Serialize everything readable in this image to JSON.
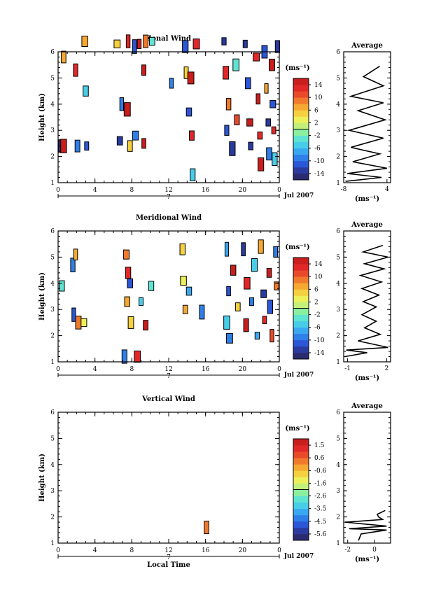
{
  "chart_data": [
    {
      "type": "heatmap",
      "title": "Zonal Wind",
      "xlabel": "",
      "ylabel": "Height (km)",
      "x_ticks": [
        "0",
        "4",
        "8",
        "12",
        "16",
        "20",
        "0"
      ],
      "y_ticks": [
        "1",
        "2",
        "3",
        "4",
        "5",
        "6"
      ],
      "xlim": [
        0,
        24
      ],
      "ylim": [
        1,
        6
      ],
      "day_label": "7",
      "date_label": "Jul 2007",
      "colorbar": {
        "unit": "(ms⁻¹)",
        "ticks": [
          "14",
          "10",
          "6",
          "2",
          "-2",
          "-6",
          "-10",
          "-14"
        ],
        "range": [
          -16,
          16
        ],
        "colors": [
          "#2a2a6e",
          "#2b3a9e",
          "#2b56d6",
          "#2f7fe8",
          "#3aa8f0",
          "#48cde8",
          "#5fe3d2",
          "#8af0a0",
          "#c2f07a",
          "#ecf05a",
          "#f5d040",
          "#f5a832",
          "#f07a2c",
          "#e84a2a",
          "#e02828",
          "#c81e1e"
        ]
      },
      "patches": [
        {
          "t": 0.3,
          "h": 2.4,
          "v": -14
        },
        {
          "t": 0.6,
          "h": 2.4,
          "v": 14
        },
        {
          "t": 0.6,
          "h": 5.8,
          "v": 6
        },
        {
          "t": 1.9,
          "h": 5.3,
          "v": 12
        },
        {
          "t": 2.1,
          "h": 2.4,
          "v": -10
        },
        {
          "t": 2.9,
          "h": 6.4,
          "v": 6
        },
        {
          "t": 3.0,
          "h": 4.5,
          "v": -6
        },
        {
          "t": 3.1,
          "h": 2.4,
          "v": -12
        },
        {
          "t": 6.4,
          "h": 6.3,
          "v": 4
        },
        {
          "t": 6.7,
          "h": 2.6,
          "v": -13
        },
        {
          "t": 6.9,
          "h": 4.0,
          "v": -10
        },
        {
          "t": 7.6,
          "h": 6.4,
          "v": 12
        },
        {
          "t": 7.5,
          "h": 3.8,
          "v": 14
        },
        {
          "t": 7.8,
          "h": 2.4,
          "v": 4
        },
        {
          "t": 8.3,
          "h": 6.2,
          "v": -12
        },
        {
          "t": 8.4,
          "h": 2.8,
          "v": -10
        },
        {
          "t": 8.8,
          "h": 6.3,
          "v": 14
        },
        {
          "t": 9.3,
          "h": 5.3,
          "v": 14
        },
        {
          "t": 9.3,
          "h": 2.5,
          "v": 14
        },
        {
          "t": 9.5,
          "h": 6.4,
          "v": 8
        },
        {
          "t": 10.2,
          "h": 6.4,
          "v": -4
        },
        {
          "t": 12.3,
          "h": 4.8,
          "v": -10
        },
        {
          "t": 13.8,
          "h": 6.2,
          "v": -12
        },
        {
          "t": 13.9,
          "h": 5.2,
          "v": 4
        },
        {
          "t": 14.4,
          "h": 5.0,
          "v": 14
        },
        {
          "t": 14.2,
          "h": 3.7,
          "v": -12
        },
        {
          "t": 14.5,
          "h": 2.8,
          "v": 12
        },
        {
          "t": 14.6,
          "h": 1.3,
          "v": -6
        },
        {
          "t": 15.0,
          "h": 6.3,
          "v": 12
        },
        {
          "t": 18.0,
          "h": 6.4,
          "v": -13
        },
        {
          "t": 18.2,
          "h": 5.2,
          "v": 12
        },
        {
          "t": 18.5,
          "h": 4.0,
          "v": 8
        },
        {
          "t": 18.3,
          "h": 3.0,
          "v": -12
        },
        {
          "t": 18.9,
          "h": 2.3,
          "v": -14
        },
        {
          "t": 19.3,
          "h": 5.5,
          "v": -4
        },
        {
          "t": 19.4,
          "h": 3.4,
          "v": 10
        },
        {
          "t": 20.3,
          "h": 6.3,
          "v": -14
        },
        {
          "t": 20.6,
          "h": 4.8,
          "v": -12
        },
        {
          "t": 20.8,
          "h": 3.3,
          "v": 14
        },
        {
          "t": 20.9,
          "h": 2.4,
          "v": -14
        },
        {
          "t": 21.5,
          "h": 5.8,
          "v": 12
        },
        {
          "t": 21.7,
          "h": 4.2,
          "v": 14
        },
        {
          "t": 21.9,
          "h": 2.8,
          "v": 12
        },
        {
          "t": 22.0,
          "h": 1.7,
          "v": 14
        },
        {
          "t": 22.4,
          "h": 6.0,
          "v": -12
        },
        {
          "t": 22.6,
          "h": 4.6,
          "v": 6
        },
        {
          "t": 22.8,
          "h": 3.3,
          "v": -14
        },
        {
          "t": 22.9,
          "h": 2.1,
          "v": -10
        },
        {
          "t": 23.2,
          "h": 5.5,
          "v": 14
        },
        {
          "t": 23.3,
          "h": 4.0,
          "v": -12
        },
        {
          "t": 23.4,
          "h": 3.0,
          "v": 12
        },
        {
          "t": 23.5,
          "h": 1.9,
          "v": -6
        },
        {
          "t": 23.8,
          "h": 6.2,
          "v": -13
        }
      ]
    },
    {
      "type": "line",
      "title": "Average",
      "xlabel": "(ms⁻¹)",
      "ylabel": "",
      "x_ticks": [
        "-8",
        "4"
      ],
      "y_ticks": [
        "1",
        "2",
        "3",
        "4",
        "5",
        "6"
      ],
      "xlim": [
        -8,
        5
      ],
      "ylim": [
        1,
        6
      ],
      "points": [
        {
          "x": 2.0,
          "y": 5.45
        },
        {
          "x": -2.5,
          "y": 5.05
        },
        {
          "x": 3.0,
          "y": 4.7
        },
        {
          "x": -6.0,
          "y": 4.3
        },
        {
          "x": 3.0,
          "y": 4.05
        },
        {
          "x": -4.0,
          "y": 3.75
        },
        {
          "x": 3.5,
          "y": 3.4
        },
        {
          "x": -6.5,
          "y": 3.0
        },
        {
          "x": 3.0,
          "y": 2.7
        },
        {
          "x": -6.0,
          "y": 2.35
        },
        {
          "x": 2.0,
          "y": 2.1
        },
        {
          "x": -5.5,
          "y": 1.8
        },
        {
          "x": 4.0,
          "y": 1.55
        },
        {
          "x": -7.0,
          "y": 1.35
        },
        {
          "x": 2.5,
          "y": 1.2
        },
        {
          "x": -7.5,
          "y": 1.05
        }
      ]
    },
    {
      "type": "heatmap",
      "title": "Meridional Wind",
      "xlabel": "",
      "ylabel": "Height (km)",
      "x_ticks": [
        "0",
        "4",
        "8",
        "12",
        "16",
        "20",
        "0"
      ],
      "y_ticks": [
        "1",
        "2",
        "3",
        "4",
        "5",
        "6"
      ],
      "xlim": [
        0,
        24
      ],
      "ylim": [
        1,
        6
      ],
      "day_label": "7",
      "date_label": "Jul 2007",
      "colorbar": {
        "unit": "(ms⁻¹)",
        "ticks": [
          "14",
          "10",
          "6",
          "2",
          "-2",
          "-6",
          "-10",
          "-14"
        ],
        "range": [
          -16,
          16
        ],
        "colors": [
          "#2a2a6e",
          "#2b3a9e",
          "#2b56d6",
          "#2f7fe8",
          "#3aa8f0",
          "#48cde8",
          "#5fe3d2",
          "#8af0a0",
          "#c2f07a",
          "#ecf05a",
          "#f5d040",
          "#f5a832",
          "#f07a2c",
          "#e84a2a",
          "#e02828",
          "#c81e1e"
        ]
      },
      "patches": [
        {
          "t": 0.4,
          "h": 3.9,
          "v": -4
        },
        {
          "t": 1.6,
          "h": 4.7,
          "v": -10
        },
        {
          "t": 1.9,
          "h": 5.1,
          "v": 6
        },
        {
          "t": 2.2,
          "h": 2.5,
          "v": 8
        },
        {
          "t": 1.7,
          "h": 2.8,
          "v": -12
        },
        {
          "t": 2.8,
          "h": 2.5,
          "v": 2
        },
        {
          "t": 7.4,
          "h": 5.1,
          "v": 8
        },
        {
          "t": 7.6,
          "h": 4.4,
          "v": 12
        },
        {
          "t": 7.8,
          "h": 4.0,
          "v": -12
        },
        {
          "t": 7.5,
          "h": 3.3,
          "v": 6
        },
        {
          "t": 7.9,
          "h": 2.5,
          "v": 4
        },
        {
          "t": 7.2,
          "h": 1.2,
          "v": -10
        },
        {
          "t": 8.6,
          "h": 1.2,
          "v": 12
        },
        {
          "t": 9.0,
          "h": 3.3,
          "v": -6
        },
        {
          "t": 9.5,
          "h": 2.4,
          "v": 14
        },
        {
          "t": 10.1,
          "h": 3.9,
          "v": -4
        },
        {
          "t": 13.5,
          "h": 5.3,
          "v": 4
        },
        {
          "t": 13.6,
          "h": 4.1,
          "v": 2
        },
        {
          "t": 14.2,
          "h": 3.7,
          "v": -8
        },
        {
          "t": 13.8,
          "h": 3.0,
          "v": 6
        },
        {
          "t": 15.6,
          "h": 2.9,
          "v": -10
        },
        {
          "t": 18.3,
          "h": 5.3,
          "v": -8
        },
        {
          "t": 18.5,
          "h": 3.7,
          "v": -12
        },
        {
          "t": 18.3,
          "h": 2.5,
          "v": -6
        },
        {
          "t": 18.6,
          "h": 1.9,
          "v": -10
        },
        {
          "t": 19.0,
          "h": 4.5,
          "v": 14
        },
        {
          "t": 19.5,
          "h": 3.1,
          "v": 4
        },
        {
          "t": 20.1,
          "h": 5.3,
          "v": -14
        },
        {
          "t": 20.5,
          "h": 4.0,
          "v": 12
        },
        {
          "t": 20.4,
          "h": 2.4,
          "v": 14
        },
        {
          "t": 21.0,
          "h": 3.3,
          "v": -10
        },
        {
          "t": 21.3,
          "h": 4.7,
          "v": -6
        },
        {
          "t": 21.6,
          "h": 2.0,
          "v": -8
        },
        {
          "t": 22.0,
          "h": 5.4,
          "v": 6
        },
        {
          "t": 22.3,
          "h": 3.6,
          "v": -14
        },
        {
          "t": 22.4,
          "h": 2.6,
          "v": 12
        },
        {
          "t": 22.9,
          "h": 4.4,
          "v": 14
        },
        {
          "t": 23.0,
          "h": 3.1,
          "v": -12
        },
        {
          "t": 23.2,
          "h": 2.0,
          "v": 10
        },
        {
          "t": 23.6,
          "h": 5.2,
          "v": -10
        },
        {
          "t": 23.7,
          "h": 3.9,
          "v": 8
        }
      ]
    },
    {
      "type": "line",
      "title": "Average",
      "xlabel": "(ms⁻¹)",
      "ylabel": "",
      "x_ticks": [
        "-1",
        "2"
      ],
      "y_ticks": [
        "1",
        "2",
        "3",
        "4",
        "5",
        "6"
      ],
      "xlim": [
        -1.3,
        2.3
      ],
      "ylim": [
        1,
        6
      ],
      "points": [
        {
          "x": 1.7,
          "y": 5.45
        },
        {
          "x": 0.2,
          "y": 5.2
        },
        {
          "x": 2.1,
          "y": 5.0
        },
        {
          "x": 0.3,
          "y": 4.75
        },
        {
          "x": 1.8,
          "y": 4.55
        },
        {
          "x": 0.0,
          "y": 4.3
        },
        {
          "x": 1.6,
          "y": 4.05
        },
        {
          "x": 0.1,
          "y": 3.8
        },
        {
          "x": 1.4,
          "y": 3.55
        },
        {
          "x": 0.2,
          "y": 3.3
        },
        {
          "x": 1.2,
          "y": 3.1
        },
        {
          "x": 0.1,
          "y": 2.8
        },
        {
          "x": 1.2,
          "y": 2.55
        },
        {
          "x": 0.3,
          "y": 2.3
        },
        {
          "x": 1.5,
          "y": 2.05
        },
        {
          "x": -0.2,
          "y": 1.8
        },
        {
          "x": 2.1,
          "y": 1.55
        },
        {
          "x": -1.1,
          "y": 1.45
        },
        {
          "x": 0.5,
          "y": 1.35
        },
        {
          "x": -1.2,
          "y": 1.2
        }
      ]
    },
    {
      "type": "heatmap",
      "title": "Vertical Wind",
      "xlabel": "Local Time",
      "ylabel": "Height (km)",
      "x_ticks": [
        "0",
        "4",
        "8",
        "12",
        "16",
        "20",
        "0"
      ],
      "y_ticks": [
        "1",
        "2",
        "3",
        "4",
        "5",
        "6"
      ],
      "xlim": [
        0,
        24
      ],
      "ylim": [
        1,
        6
      ],
      "day_label": "7",
      "date_label": "Jul 2007",
      "colorbar": {
        "unit": "(ms⁻¹)",
        "ticks": [
          "1.5",
          "0.6",
          "-0.6",
          "-1.6",
          "-2.6",
          "-3.5",
          "-4.5",
          "-5.6"
        ],
        "range": [
          -6.1,
          2.0
        ],
        "colors": [
          "#2a2a6e",
          "#2b3a9e",
          "#2b56d6",
          "#2f7fe8",
          "#3aa8f0",
          "#48cde8",
          "#5fe3d2",
          "#8af0a0",
          "#c2f07a",
          "#ecf05a",
          "#f5d040",
          "#f5a832",
          "#f07a2c",
          "#e84a2a",
          "#e02828",
          "#c81e1e"
        ]
      },
      "patches": [
        {
          "t": 16.1,
          "h": 1.6,
          "v": 0.3
        }
      ]
    },
    {
      "type": "line",
      "title": "Average",
      "xlabel": "(ms⁻¹)",
      "ylabel": "",
      "x_ticks": [
        "-2",
        "0"
      ],
      "y_ticks": [
        "1",
        "2",
        "3",
        "4",
        "5",
        "6"
      ],
      "xlim": [
        -2.3,
        1.2
      ],
      "ylim": [
        1,
        6
      ],
      "points": [
        {
          "x": 0.8,
          "y": 2.25
        },
        {
          "x": 0.2,
          "y": 2.1
        },
        {
          "x": 0.3,
          "y": 2.0
        },
        {
          "x": 0.6,
          "y": 1.9
        },
        {
          "x": -2.2,
          "y": 1.8
        },
        {
          "x": 0.9,
          "y": 1.65
        },
        {
          "x": -1.9,
          "y": 1.55
        },
        {
          "x": 0.9,
          "y": 1.5
        },
        {
          "x": -1.0,
          "y": 1.35
        },
        {
          "x": -1.2,
          "y": 1.1
        }
      ]
    }
  ]
}
